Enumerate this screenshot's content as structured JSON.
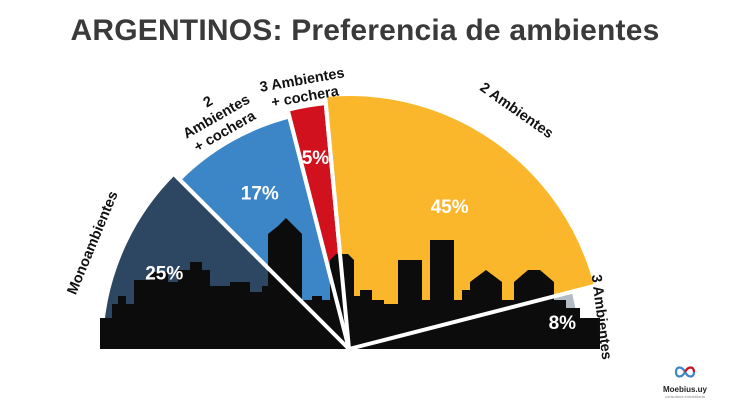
{
  "chart_data": {
    "type": "pie",
    "variant": "semicircle",
    "title": "ARGENTINOS: Preferencia de ambientes",
    "slices": [
      {
        "label": [
          "Monoambientes"
        ],
        "value": 25,
        "display": "25%",
        "color": "#2d4662"
      },
      {
        "label": [
          "2",
          "Ambientes",
          "+ cochera"
        ],
        "value": 17,
        "display": "17%",
        "color": "#3c86c8"
      },
      {
        "label": [
          "3 Ambientes",
          "+ cochera"
        ],
        "value": 5,
        "display": "5%",
        "color": "#d1121e"
      },
      {
        "label": [
          "2 Ambientes"
        ],
        "value": 45,
        "display": "45%",
        "color": "#fbb72b"
      },
      {
        "label": [
          "3 Ambientes"
        ],
        "value": 8,
        "display": "8%",
        "color": "#b3bcc6"
      }
    ],
    "legend": "none",
    "grid": false
  },
  "logo": {
    "text": "Moebius.uy",
    "subtext": "consultora inmobiliaria"
  }
}
